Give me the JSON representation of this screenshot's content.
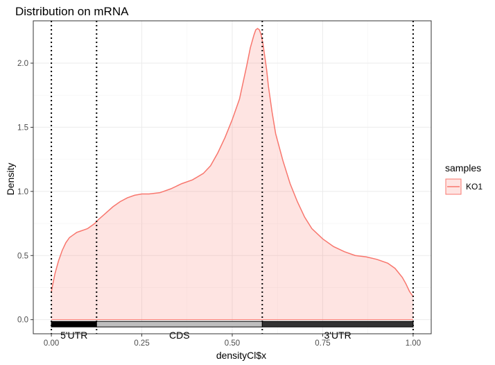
{
  "chart_data": {
    "type": "area",
    "title": "Distribution on mRNA",
    "xlabel": "densityCl$x",
    "ylabel": "Density",
    "xlim": [
      -0.05,
      1.05
    ],
    "ylim": [
      -0.11,
      2.33
    ],
    "xticks": [
      0.0,
      0.25,
      0.5,
      0.75,
      1.0
    ],
    "xtick_labels": [
      "0.00",
      "0.25",
      "0.50",
      "0.75",
      "1.00"
    ],
    "yticks": [
      0.0,
      0.5,
      1.0,
      1.5,
      2.0
    ],
    "ytick_labels": [
      "0.0",
      "0.5",
      "1.0",
      "1.5",
      "2.0"
    ],
    "grid": true,
    "legend": {
      "title": "samples",
      "position": "right",
      "entries": [
        {
          "label": "KO1",
          "color": "#F8766D"
        }
      ]
    },
    "series": [
      {
        "name": "KO1",
        "color": "#F8766D",
        "x": [
          0.0,
          0.01,
          0.02,
          0.03,
          0.04,
          0.05,
          0.06,
          0.07,
          0.08,
          0.09,
          0.1,
          0.11,
          0.12,
          0.13,
          0.15,
          0.17,
          0.19,
          0.21,
          0.23,
          0.25,
          0.27,
          0.3,
          0.33,
          0.36,
          0.39,
          0.42,
          0.44,
          0.46,
          0.48,
          0.5,
          0.52,
          0.54,
          0.55,
          0.56,
          0.565,
          0.57,
          0.575,
          0.58,
          0.585,
          0.59,
          0.595,
          0.6,
          0.61,
          0.62,
          0.64,
          0.66,
          0.68,
          0.7,
          0.72,
          0.75,
          0.78,
          0.81,
          0.84,
          0.87,
          0.9,
          0.93,
          0.95,
          0.97,
          0.98,
          0.99,
          1.0
        ],
        "y": [
          0.22,
          0.36,
          0.46,
          0.54,
          0.6,
          0.64,
          0.66,
          0.68,
          0.69,
          0.7,
          0.71,
          0.73,
          0.75,
          0.78,
          0.83,
          0.88,
          0.92,
          0.95,
          0.97,
          0.98,
          0.98,
          0.99,
          1.02,
          1.06,
          1.09,
          1.14,
          1.2,
          1.3,
          1.42,
          1.56,
          1.72,
          1.98,
          2.12,
          2.22,
          2.26,
          2.27,
          2.26,
          2.22,
          2.15,
          2.05,
          1.95,
          1.82,
          1.62,
          1.45,
          1.24,
          1.06,
          0.92,
          0.8,
          0.71,
          0.63,
          0.57,
          0.53,
          0.5,
          0.49,
          0.47,
          0.44,
          0.4,
          0.33,
          0.28,
          0.22,
          0.18
        ]
      }
    ],
    "region_boundaries": [
      0.0,
      0.125,
      0.583,
      1.0
    ],
    "regions": [
      {
        "label": "5'UTR",
        "start": 0.0,
        "end": 0.125,
        "fill": "#000000"
      },
      {
        "label": "CDS",
        "start": 0.125,
        "end": 0.583,
        "fill": "#bebebe"
      },
      {
        "label": "3'UTR",
        "start": 0.583,
        "end": 1.0,
        "fill": "#333333"
      }
    ],
    "region_bar_y": -0.035
  }
}
